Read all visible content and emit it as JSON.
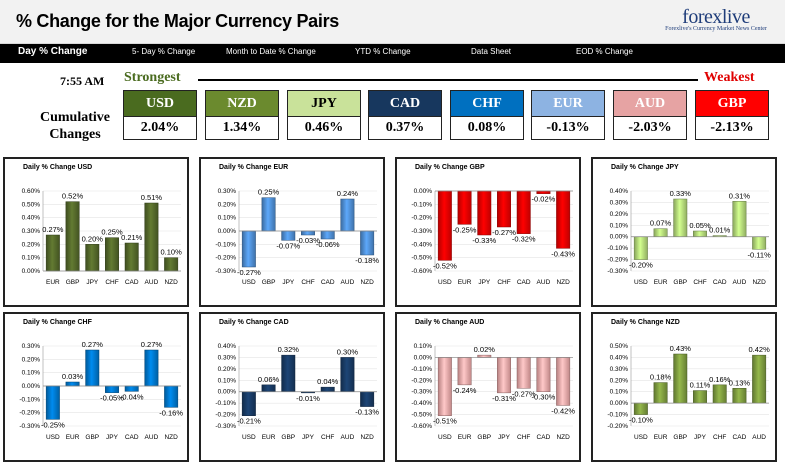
{
  "header": {
    "title": "% Change for the Major Currency Pairs",
    "logo_main": "forexlive",
    "logo_tagline": "Forexlive's Currency Market News Center"
  },
  "nav": {
    "items": [
      {
        "label": "Day % Change",
        "active": true
      },
      {
        "label": "5- Day % Change",
        "active": false
      },
      {
        "label": "Month to Date % Change",
        "active": false
      },
      {
        "label": "YTD % Change",
        "active": false
      },
      {
        "label": "Data Sheet",
        "active": false
      },
      {
        "label": "EOD % Change",
        "active": false
      }
    ]
  },
  "summary": {
    "time": "7:55 AM",
    "strongest_label": "Strongest",
    "weakest_label": "Weakest",
    "cumulative_label_line1": "Cumulative",
    "cumulative_label_line2": "Changes",
    "tiles": [
      {
        "code": "USD",
        "value": "2.04%",
        "color": "#4a6b1f",
        "text_color": "#ffffff"
      },
      {
        "code": "NZD",
        "value": "1.34%",
        "color": "#6b8a2e",
        "text_color": "#ffffff"
      },
      {
        "code": "JPY",
        "value": "0.46%",
        "color": "#c9e29a",
        "text_color": "#000000"
      },
      {
        "code": "CAD",
        "value": "0.37%",
        "color": "#17375e",
        "text_color": "#ffffff"
      },
      {
        "code": "CHF",
        "value": "0.08%",
        "color": "#0070c0",
        "text_color": "#ffffff"
      },
      {
        "code": "EUR",
        "value": "-0.13%",
        "color": "#8db3e2",
        "text_color": "#ffffff"
      },
      {
        "code": "AUD",
        "value": "-2.03%",
        "color": "#e6a3a3",
        "text_color": "#ffffff"
      },
      {
        "code": "GBP",
        "value": "-2.13%",
        "color": "#ff0000",
        "text_color": "#ffffff"
      }
    ]
  },
  "chart_data": [
    {
      "type": "bar",
      "title": "Daily % Change USD",
      "color": "#4f6228",
      "categories": [
        "EUR",
        "GBP",
        "JPY",
        "CHF",
        "CAD",
        "AUD",
        "NZD"
      ],
      "values": [
        0.27,
        0.52,
        0.2,
        0.25,
        0.21,
        0.51,
        0.1
      ],
      "value_labels": [
        "0.27%",
        "0.52%",
        "0.20%",
        "0.25%",
        "0.21%",
        "0.51%",
        "0.10%"
      ],
      "ylim": [
        0,
        0.6
      ],
      "yticks": [
        0,
        0.1,
        0.2,
        0.3,
        0.4,
        0.5,
        0.6
      ],
      "ytick_labels": [
        "0.00%",
        "0.10%",
        "0.20%",
        "0.30%",
        "0.40%",
        "0.50%",
        "0.60%"
      ]
    },
    {
      "type": "bar",
      "title": "Daily % Change EUR",
      "color": "#4a86c8",
      "categories": [
        "USD",
        "GBP",
        "JPY",
        "CHF",
        "CAD",
        "AUD",
        "NZD"
      ],
      "values": [
        -0.27,
        0.25,
        -0.07,
        -0.03,
        -0.06,
        0.24,
        -0.18
      ],
      "value_labels": [
        "-0.27%",
        "0.25%",
        "-0.07%",
        "-0.03%",
        "-0.06%",
        "0.24%",
        "-0.18%"
      ],
      "ylim": [
        -0.3,
        0.3
      ],
      "yticks": [
        -0.3,
        -0.2,
        -0.1,
        0,
        0.1,
        0.2,
        0.3
      ],
      "ytick_labels": [
        "-0.30%",
        "-0.20%",
        "-0.10%",
        "0.00%",
        "0.10%",
        "0.20%",
        "0.30%"
      ]
    },
    {
      "type": "bar",
      "title": "Daily % Change GBP",
      "color": "#e00000",
      "categories": [
        "USD",
        "EUR",
        "JPY",
        "CHF",
        "CAD",
        "AUD",
        "NZD"
      ],
      "values": [
        -0.52,
        -0.25,
        -0.33,
        -0.27,
        -0.32,
        -0.02,
        -0.43
      ],
      "value_labels": [
        "-0.52%",
        "-0.25%",
        "-0.33%",
        "-0.27%",
        "-0.32%",
        "-0.02%",
        "-0.43%"
      ],
      "ylim": [
        -0.6,
        0
      ],
      "yticks": [
        -0.6,
        -0.5,
        -0.4,
        -0.3,
        -0.2,
        -0.1,
        0
      ],
      "ytick_labels": [
        "-0.60%",
        "-0.50%",
        "-0.40%",
        "-0.30%",
        "-0.20%",
        "-0.10%",
        "0.00%"
      ]
    },
    {
      "type": "bar",
      "title": "Daily % Change JPY",
      "color": "#a9cc72",
      "categories": [
        "USD",
        "EUR",
        "GBP",
        "CHF",
        "CAD",
        "AUD",
        "NZD"
      ],
      "values": [
        -0.2,
        0.07,
        0.33,
        0.05,
        0.01,
        0.31,
        -0.11
      ],
      "value_labels": [
        "-0.20%",
        "0.07%",
        "0.33%",
        "0.05%",
        "0.01%",
        "0.31%",
        "-0.11%"
      ],
      "ylim": [
        -0.3,
        0.4
      ],
      "yticks": [
        -0.3,
        -0.2,
        -0.1,
        0,
        0.1,
        0.2,
        0.3,
        0.4
      ],
      "ytick_labels": [
        "-0.30%",
        "-0.20%",
        "-0.10%",
        "0.00%",
        "0.10%",
        "0.20%",
        "0.30%",
        "0.40%"
      ]
    },
    {
      "type": "bar",
      "title": "Daily % Change CHF",
      "color": "#0070c0",
      "categories": [
        "USD",
        "EUR",
        "GBP",
        "JPY",
        "CAD",
        "AUD",
        "NZD"
      ],
      "values": [
        -0.25,
        0.03,
        0.27,
        -0.05,
        -0.04,
        0.27,
        -0.16
      ],
      "value_labels": [
        "-0.25%",
        "0.03%",
        "0.27%",
        "-0.05%",
        "-0.04%",
        "0.27%",
        "-0.16%"
      ],
      "ylim": [
        -0.3,
        0.3
      ],
      "yticks": [
        -0.3,
        -0.2,
        -0.1,
        0,
        0.1,
        0.2,
        0.3
      ],
      "ytick_labels": [
        "-0.30%",
        "-0.20%",
        "-0.10%",
        "0.00%",
        "0.10%",
        "0.20%",
        "0.30%"
      ]
    },
    {
      "type": "bar",
      "title": "Daily % Change CAD",
      "color": "#17375e",
      "categories": [
        "USD",
        "EUR",
        "GBP",
        "JPY",
        "CHF",
        "AUD",
        "NZD"
      ],
      "values": [
        -0.21,
        0.06,
        0.32,
        -0.01,
        0.04,
        0.3,
        -0.13
      ],
      "value_labels": [
        "-0.21%",
        "0.06%",
        "0.32%",
        "-0.01%",
        "0.04%",
        "0.30%",
        "-0.13%"
      ],
      "ylim": [
        -0.3,
        0.4
      ],
      "yticks": [
        -0.3,
        -0.2,
        -0.1,
        0,
        0.1,
        0.2,
        0.3,
        0.4
      ],
      "ytick_labels": [
        "-0.30%",
        "-0.20%",
        "-0.10%",
        "0.00%",
        "0.10%",
        "0.20%",
        "0.30%",
        "0.40%"
      ]
    },
    {
      "type": "bar",
      "title": "Daily % Change AUD",
      "color": "#e3a0a0",
      "categories": [
        "USD",
        "EUR",
        "GBP",
        "JPY",
        "CHF",
        "CAD",
        "NZD"
      ],
      "values": [
        -0.51,
        -0.24,
        0.02,
        -0.31,
        -0.27,
        -0.3,
        -0.42
      ],
      "value_labels": [
        "-0.51%",
        "-0.24%",
        "0.02%",
        "-0.31%",
        "-0.27%",
        "-0.30%",
        "-0.42%"
      ],
      "ylim": [
        -0.6,
        0.1
      ],
      "yticks": [
        -0.6,
        -0.5,
        -0.4,
        -0.3,
        -0.2,
        -0.1,
        0,
        0.1
      ],
      "ytick_labels": [
        "-0.60%",
        "-0.50%",
        "-0.40%",
        "-0.30%",
        "-0.20%",
        "-0.10%",
        "0.00%",
        "0.10%"
      ]
    },
    {
      "type": "bar",
      "title": "Daily % Change NZD",
      "color": "#77933c",
      "categories": [
        "USD",
        "EUR",
        "GBP",
        "JPY",
        "CHF",
        "CAD",
        "AUD"
      ],
      "values": [
        -0.1,
        0.18,
        0.43,
        0.11,
        0.16,
        0.13,
        0.42
      ],
      "value_labels": [
        "-0.10%",
        "0.18%",
        "0.43%",
        "0.11%",
        "0.16%",
        "0.13%",
        "0.42%"
      ],
      "ylim": [
        -0.2,
        0.5
      ],
      "yticks": [
        -0.2,
        -0.1,
        0,
        0.1,
        0.2,
        0.3,
        0.4,
        0.5
      ],
      "ytick_labels": [
        "-0.20%",
        "-0.10%",
        "0.00%",
        "0.10%",
        "0.20%",
        "0.30%",
        "0.40%",
        "0.50%"
      ]
    }
  ]
}
